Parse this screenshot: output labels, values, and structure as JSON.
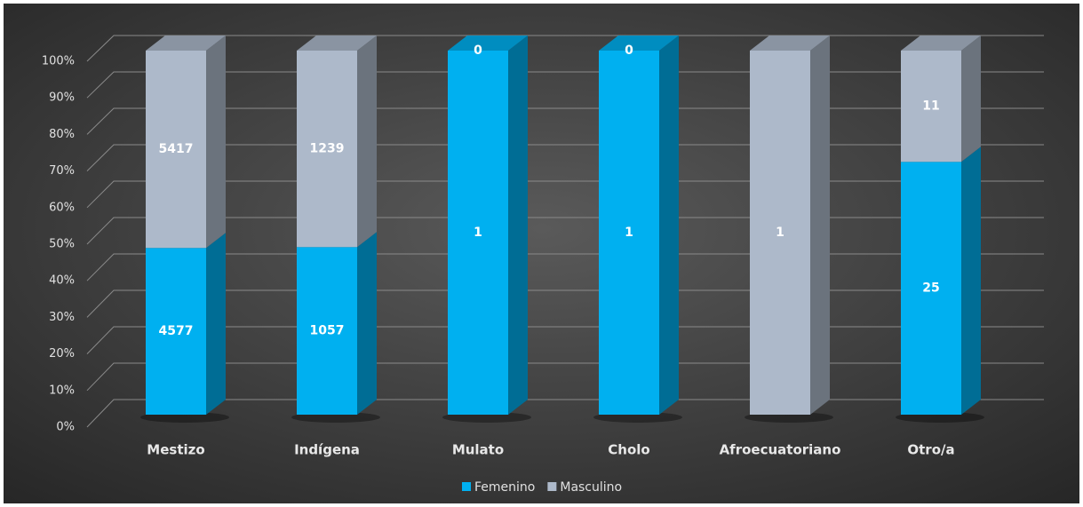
{
  "chart_data": {
    "type": "bar",
    "stacking": "percent",
    "categories": [
      "Mestizo",
      "Indígena",
      "Mulato",
      "Cholo",
      "Afroecuatoriano",
      "Otro/a"
    ],
    "series": [
      {
        "name": "Femenino",
        "color": "#00b0f0",
        "values": [
          4577,
          1057,
          1,
          1,
          null,
          25
        ]
      },
      {
        "name": "Masculino",
        "color": "#adb9ca",
        "values": [
          5417,
          1239,
          0,
          0,
          1,
          11
        ]
      }
    ],
    "ylim": [
      0,
      100
    ],
    "yticks": [
      {
        "value": 0,
        "label": "0%"
      },
      {
        "value": 10,
        "label": "10%"
      },
      {
        "value": 20,
        "label": "20%"
      },
      {
        "value": 30,
        "label": "30%"
      },
      {
        "value": 40,
        "label": "40%"
      },
      {
        "value": 50,
        "label": "50%"
      },
      {
        "value": 60,
        "label": "60%"
      },
      {
        "value": 70,
        "label": "70%"
      },
      {
        "value": 80,
        "label": "80%"
      },
      {
        "value": 90,
        "label": "90%"
      },
      {
        "value": 100,
        "label": "100%"
      }
    ],
    "grid": true,
    "legend": "bottom"
  }
}
